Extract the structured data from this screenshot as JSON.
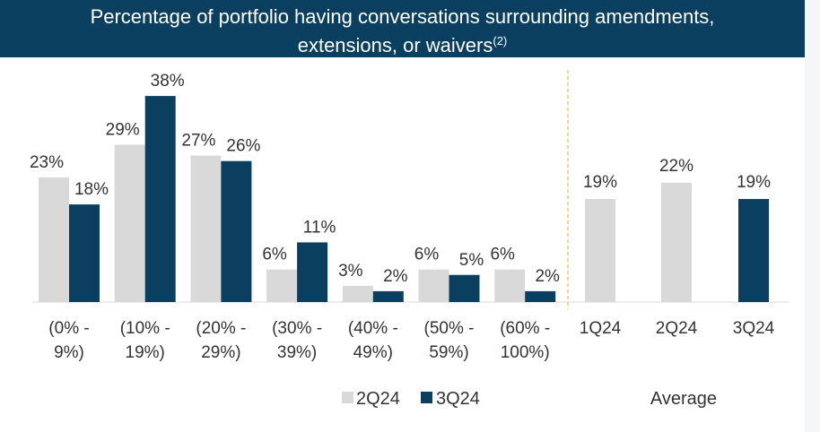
{
  "header": {
    "title_line1": "Percentage of portfolio having conversations surrounding amendments,",
    "title_line2": "extensions, or waivers",
    "footnote_mark": "(2)"
  },
  "colors": {
    "series_2Q24": "#d9d9d9",
    "series_3Q24": "#0a3f5f",
    "title_bg": "#0a3f5f",
    "divider": "#f2c14e"
  },
  "chart_data": [
    {
      "type": "bar",
      "categories": [
        "(0% -\n9%)",
        "(10% -\n19%)",
        "(20% -\n29%)",
        "(30% -\n39%)",
        "(40% -\n49%)",
        "(50% -\n59%)",
        "(60% -\n100%)"
      ],
      "series": [
        {
          "name": "2Q24",
          "values": [
            23,
            29,
            27,
            6,
            3,
            6,
            6
          ],
          "labels": [
            "23%",
            "29%",
            "27%",
            "6%",
            "3%",
            "6%",
            "6%"
          ]
        },
        {
          "name": "3Q24",
          "values": [
            18,
            38,
            26,
            11,
            2,
            5,
            2
          ],
          "labels": [
            "18%",
            "38%",
            "26%",
            "11%",
            "2%",
            "5%",
            "2%"
          ]
        }
      ],
      "ylim": [
        0,
        38
      ],
      "legend": "bottom"
    },
    {
      "type": "bar",
      "title": "Average",
      "categories": [
        "1Q24",
        "2Q24",
        "3Q24"
      ],
      "values": [
        19,
        22,
        19
      ],
      "labels": [
        "19%",
        "22%",
        "19%"
      ],
      "bar_series": [
        "2Q24",
        "2Q24",
        "3Q24"
      ],
      "ylim": [
        0,
        38
      ]
    }
  ]
}
